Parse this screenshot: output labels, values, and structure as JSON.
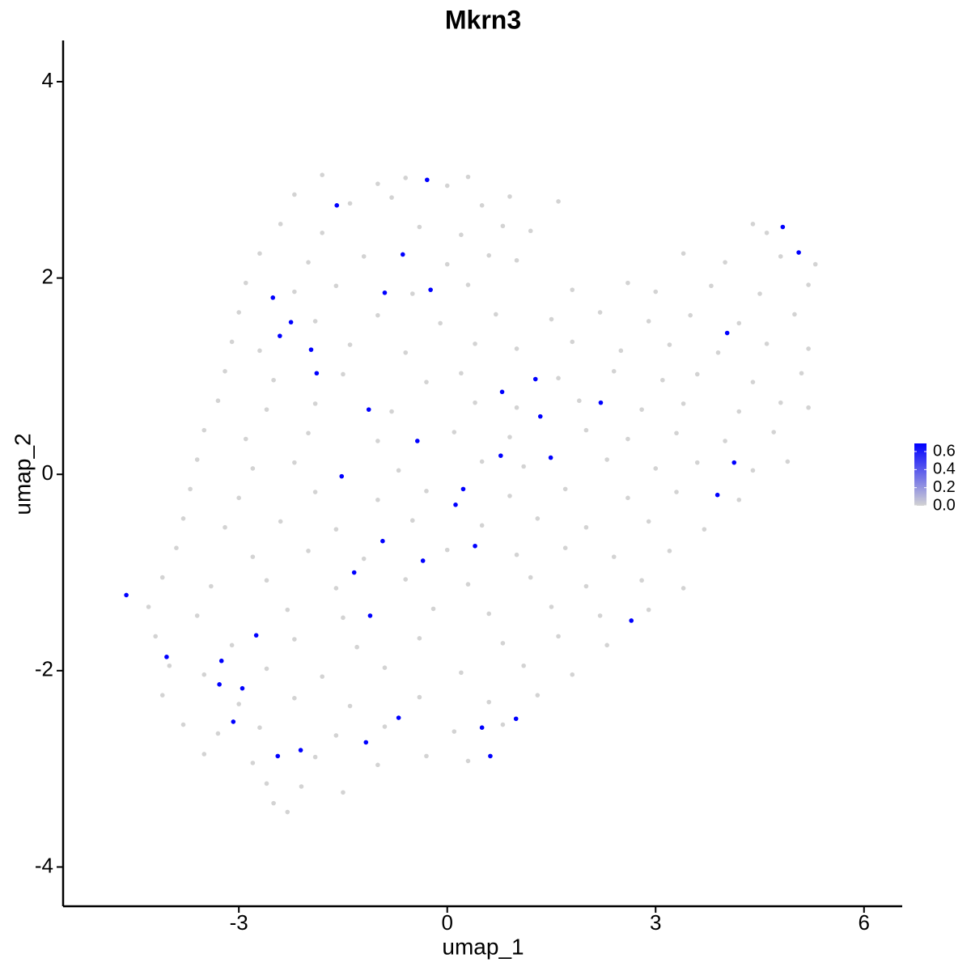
{
  "chart_data": {
    "type": "scatter",
    "title": "Mkrn3",
    "x_label": "umap_1",
    "y_label": "umap_2",
    "xlim": [
      -5.53,
      6.55
    ],
    "ylim": [
      -4.4,
      4.42
    ],
    "xticks": [
      -3,
      0,
      3,
      6
    ],
    "yticks": [
      -4,
      -2,
      0,
      2,
      4
    ],
    "grid": false,
    "color_low": "#d3d3d3",
    "color_high": "#0000ff",
    "colorlim": [
      0,
      0.69
    ],
    "colorticks": [
      {
        "value": 0,
        "label": "0.0"
      },
      0.2,
      0.4,
      0.6
    ],
    "x": [
      -1.8,
      -1.0,
      -0.6,
      0.0,
      0.3,
      -2.2,
      -1.4,
      -0.8,
      0.5,
      0.9,
      1.6,
      -2.4,
      -1.8,
      -0.4,
      0.2,
      0.8,
      1.2,
      4.4,
      4.6,
      -2.7,
      -2.0,
      -1.2,
      0.0,
      0.6,
      1.0,
      3.4,
      4.0,
      4.8,
      5.3,
      -2.9,
      -2.2,
      -1.6,
      -0.5,
      0.3,
      1.8,
      2.6,
      3.0,
      3.8,
      4.5,
      5.2,
      -3.0,
      -1.9,
      -1.0,
      -0.1,
      0.7,
      1.5,
      2.2,
      2.9,
      3.5,
      4.2,
      5.0,
      -3.1,
      -2.7,
      -1.4,
      -0.6,
      0.4,
      1.0,
      1.8,
      2.5,
      3.2,
      3.9,
      4.6,
      5.2,
      -3.2,
      -2.5,
      -1.5,
      -0.3,
      0.2,
      1.6,
      2.4,
      3.1,
      3.6,
      4.4,
      5.1,
      -3.3,
      -2.6,
      -1.9,
      -0.8,
      0.4,
      1.0,
      1.9,
      2.8,
      3.4,
      4.2,
      4.8,
      5.2,
      -3.5,
      -2.9,
      -2.0,
      -1.0,
      0.1,
      0.9,
      2.0,
      2.6,
      3.3,
      4.0,
      4.7,
      -3.6,
      -2.8,
      -2.2,
      -0.7,
      0.5,
      1.1,
      2.3,
      3.0,
      3.6,
      4.4,
      4.9,
      -3.7,
      -3.0,
      -1.9,
      -1.0,
      -0.3,
      0.9,
      1.7,
      2.6,
      3.3,
      4.2,
      -3.8,
      -3.2,
      -2.4,
      -1.6,
      -0.5,
      0.5,
      1.3,
      2.0,
      2.9,
      3.7,
      -3.9,
      -2.8,
      -2.0,
      -1.2,
      0.0,
      1.0,
      1.7,
      2.4,
      3.2,
      -4.1,
      -3.4,
      -2.6,
      -1.6,
      -0.6,
      0.3,
      1.2,
      2.0,
      2.8,
      3.4,
      -4.3,
      -3.6,
      -2.3,
      -1.5,
      -0.2,
      0.6,
      1.5,
      2.2,
      2.9,
      -4.2,
      -3.1,
      -2.2,
      -1.3,
      -0.4,
      0.8,
      1.6,
      2.3,
      -4.0,
      -3.5,
      -2.6,
      -1.8,
      -0.9,
      0.2,
      1.1,
      1.8,
      -4.1,
      -3.0,
      -2.2,
      -1.4,
      -0.4,
      0.6,
      1.3,
      -3.8,
      -3.3,
      -2.7,
      -1.6,
      -0.9,
      0.1,
      0.8,
      -3.5,
      -2.8,
      -1.9,
      -1.0,
      -0.3,
      0.3,
      -2.6,
      -1.5,
      -2.1,
      -2.5,
      -2.3,
      -0.29,
      -1.59,
      -0.64,
      -0.24,
      -0.9,
      -2.51,
      -2.25,
      -2.41,
      -1.96,
      -1.88,
      4.03,
      4.83,
      5.06,
      1.27,
      0.79,
      2.21,
      1.34,
      -1.13,
      -0.43,
      0.77,
      1.49,
      4.13,
      -1.52,
      0.23,
      0.12,
      3.89,
      0.4,
      -0.93,
      -0.35,
      -1.34,
      -4.62,
      -1.11,
      2.65,
      -2.75,
      -4.04,
      -3.25,
      -3.28,
      -2.95,
      -3.08,
      -0.7,
      0.99,
      0.5,
      -1.17,
      -2.11,
      -2.44,
      0.62
    ],
    "y": [
      3.05,
      2.96,
      3.02,
      2.94,
      3.03,
      2.85,
      2.76,
      2.82,
      2.74,
      2.83,
      2.78,
      2.55,
      2.46,
      2.52,
      2.44,
      2.53,
      2.48,
      2.55,
      2.46,
      2.25,
      2.16,
      2.22,
      2.14,
      2.23,
      2.18,
      2.25,
      2.16,
      2.22,
      2.14,
      1.95,
      1.86,
      1.92,
      1.84,
      1.93,
      1.88,
      1.95,
      1.86,
      1.92,
      1.84,
      1.93,
      1.65,
      1.56,
      1.62,
      1.54,
      1.63,
      1.58,
      1.65,
      1.56,
      1.62,
      1.54,
      1.63,
      1.35,
      1.26,
      1.32,
      1.24,
      1.33,
      1.28,
      1.35,
      1.26,
      1.32,
      1.24,
      1.33,
      1.28,
      1.05,
      0.96,
      1.02,
      0.94,
      1.03,
      0.98,
      1.05,
      0.96,
      1.02,
      0.94,
      1.03,
      0.75,
      0.66,
      0.72,
      0.64,
      0.73,
      0.68,
      0.75,
      0.66,
      0.72,
      0.64,
      0.73,
      0.68,
      0.45,
      0.36,
      0.42,
      0.34,
      0.43,
      0.38,
      0.45,
      0.36,
      0.42,
      0.34,
      0.43,
      0.15,
      0.06,
      0.12,
      0.04,
      0.13,
      0.08,
      0.15,
      0.06,
      0.12,
      0.04,
      0.13,
      -0.15,
      -0.24,
      -0.18,
      -0.26,
      -0.17,
      -0.22,
      -0.15,
      -0.24,
      -0.18,
      -0.26,
      -0.45,
      -0.54,
      -0.48,
      -0.56,
      -0.47,
      -0.52,
      -0.45,
      -0.54,
      -0.48,
      -0.56,
      -0.75,
      -0.84,
      -0.78,
      -0.86,
      -0.77,
      -0.82,
      -0.75,
      -0.84,
      -0.78,
      -1.05,
      -1.14,
      -1.08,
      -1.16,
      -1.07,
      -1.12,
      -1.05,
      -1.14,
      -1.08,
      -1.16,
      -1.35,
      -1.44,
      -1.38,
      -1.46,
      -1.37,
      -1.42,
      -1.35,
      -1.44,
      -1.38,
      -1.65,
      -1.74,
      -1.68,
      -1.76,
      -1.67,
      -1.72,
      -1.65,
      -1.74,
      -1.95,
      -2.04,
      -1.98,
      -2.06,
      -1.97,
      -2.02,
      -1.95,
      -2.04,
      -2.25,
      -2.34,
      -2.28,
      -2.36,
      -2.27,
      -2.32,
      -2.25,
      -2.55,
      -2.64,
      -2.58,
      -2.66,
      -2.57,
      -2.62,
      -2.55,
      -2.85,
      -2.94,
      -2.88,
      -2.96,
      -2.87,
      -2.92,
      -3.15,
      -3.24,
      -3.18,
      -3.35,
      -3.44,
      3.0,
      2.74,
      2.24,
      1.88,
      1.85,
      1.8,
      1.55,
      1.41,
      1.27,
      1.03,
      1.44,
      2.52,
      2.26,
      0.97,
      0.84,
      0.73,
      0.59,
      0.66,
      0.34,
      0.19,
      0.17,
      0.12,
      -0.02,
      -0.15,
      -0.31,
      -0.21,
      -0.73,
      -0.68,
      -0.88,
      -1.0,
      -1.23,
      -1.44,
      -1.49,
      -1.64,
      -1.86,
      -1.9,
      -2.14,
      -2.18,
      -2.52,
      -2.48,
      -2.49,
      -2.58,
      -2.73,
      -2.81,
      -2.87,
      -2.87
    ],
    "values": [
      0,
      0,
      0,
      0,
      0,
      0,
      0,
      0,
      0,
      0,
      0,
      0,
      0,
      0,
      0,
      0,
      0,
      0,
      0,
      0,
      0,
      0,
      0,
      0,
      0,
      0,
      0,
      0,
      0,
      0,
      0,
      0,
      0,
      0,
      0,
      0,
      0,
      0,
      0,
      0,
      0,
      0,
      0,
      0,
      0,
      0,
      0,
      0,
      0,
      0,
      0,
      0,
      0,
      0,
      0,
      0,
      0,
      0,
      0,
      0,
      0,
      0,
      0,
      0,
      0,
      0,
      0,
      0,
      0,
      0,
      0,
      0,
      0,
      0,
      0,
      0,
      0,
      0,
      0,
      0,
      0,
      0,
      0,
      0,
      0,
      0,
      0,
      0,
      0,
      0,
      0,
      0,
      0,
      0,
      0,
      0,
      0,
      0,
      0,
      0,
      0,
      0,
      0,
      0,
      0,
      0,
      0,
      0,
      0,
      0,
      0,
      0,
      0,
      0,
      0,
      0,
      0,
      0,
      0,
      0,
      0,
      0,
      0,
      0,
      0,
      0,
      0,
      0,
      0,
      0,
      0,
      0,
      0,
      0,
      0,
      0,
      0,
      0,
      0,
      0,
      0,
      0,
      0,
      0,
      0,
      0,
      0,
      0,
      0,
      0,
      0,
      0,
      0,
      0,
      0,
      0,
      0,
      0,
      0,
      0,
      0,
      0,
      0,
      0,
      0,
      0,
      0,
      0,
      0,
      0,
      0,
      0,
      0,
      0,
      0,
      0,
      0,
      0,
      0,
      0,
      0,
      0,
      0,
      0,
      0,
      0,
      0,
      0,
      0,
      0,
      0,
      0,
      0,
      0,
      0,
      0,
      0,
      0.69,
      0.69,
      0.69,
      0.69,
      0.69,
      0.69,
      0.69,
      0.69,
      0.69,
      0.69,
      0.69,
      0.69,
      0.69,
      0.69,
      0.69,
      0.69,
      0.69,
      0.69,
      0.69,
      0.69,
      0.69,
      0.69,
      0.69,
      0.69,
      0.69,
      0.69,
      0.69,
      0.69,
      0.69,
      0.69,
      0.69,
      0.69,
      0.69,
      0.69,
      0.69,
      0.69,
      0.69,
      0.69,
      0.69,
      0.69,
      0.69,
      0.69,
      0.69,
      0.69,
      0.69,
      0.69
    ]
  }
}
